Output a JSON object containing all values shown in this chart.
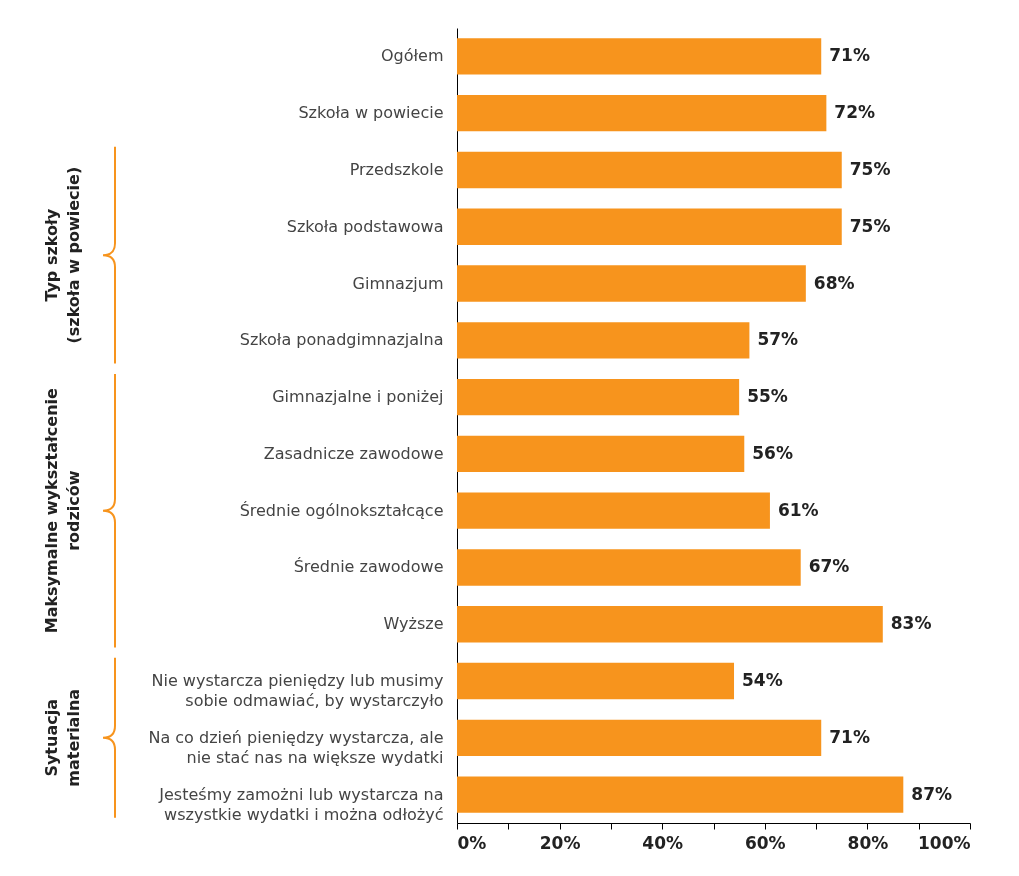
{
  "chart_data": {
    "type": "bar",
    "orientation": "horizontal",
    "categories": [
      "Ogółem",
      "Szkoła w powiecie",
      "Przedszkole",
      "Szkoła podstawowa",
      "Gimnazjum",
      "Szkoła ponadgimnazjalna",
      "Gimnazjalne i poniżej",
      "Zasadnicze zawodowe",
      "Średnie ogólnokształcące",
      "Średnie zawodowe",
      "Wyższe",
      "Nie wystarcza pieniędzy lub musimy sobie odmawiać, by wystarczyło",
      "Na co dzień pieniędzy wystarcza, ale nie stać nas na większe wydatki",
      "Jesteśmy zamożni lub wystarcza na wszystkie wydatki i można odłożyć"
    ],
    "values": [
      71,
      72,
      75,
      75,
      68,
      57,
      55,
      56,
      61,
      67,
      83,
      54,
      71,
      87
    ],
    "value_labels": [
      "71%",
      "72%",
      "75%",
      "75%",
      "68%",
      "57%",
      "55%",
      "56%",
      "61%",
      "67%",
      "83%",
      "54%",
      "71%",
      "87%"
    ],
    "color": "#f7941d",
    "xlim": [
      0,
      100
    ],
    "xticks": [
      {
        "value": 0,
        "label": "0%"
      },
      {
        "value": 10,
        "label": null
      },
      {
        "value": 20,
        "label": "20%"
      },
      {
        "value": 30,
        "label": null
      },
      {
        "value": 40,
        "label": "40%"
      },
      {
        "value": 50,
        "label": null
      },
      {
        "value": 60,
        "label": "60%"
      },
      {
        "value": 70,
        "label": null
      },
      {
        "value": 80,
        "label": "80%"
      },
      {
        "value": 90,
        "label": null
      },
      {
        "value": 100,
        "label": "100%"
      }
    ],
    "grid": false,
    "annotations": [
      "Typ szkoły\n(szkoła w powiecie)",
      "Maksymalne wykształcenie\nrodziców",
      "Sytuacja\nmaterialna"
    ]
  }
}
